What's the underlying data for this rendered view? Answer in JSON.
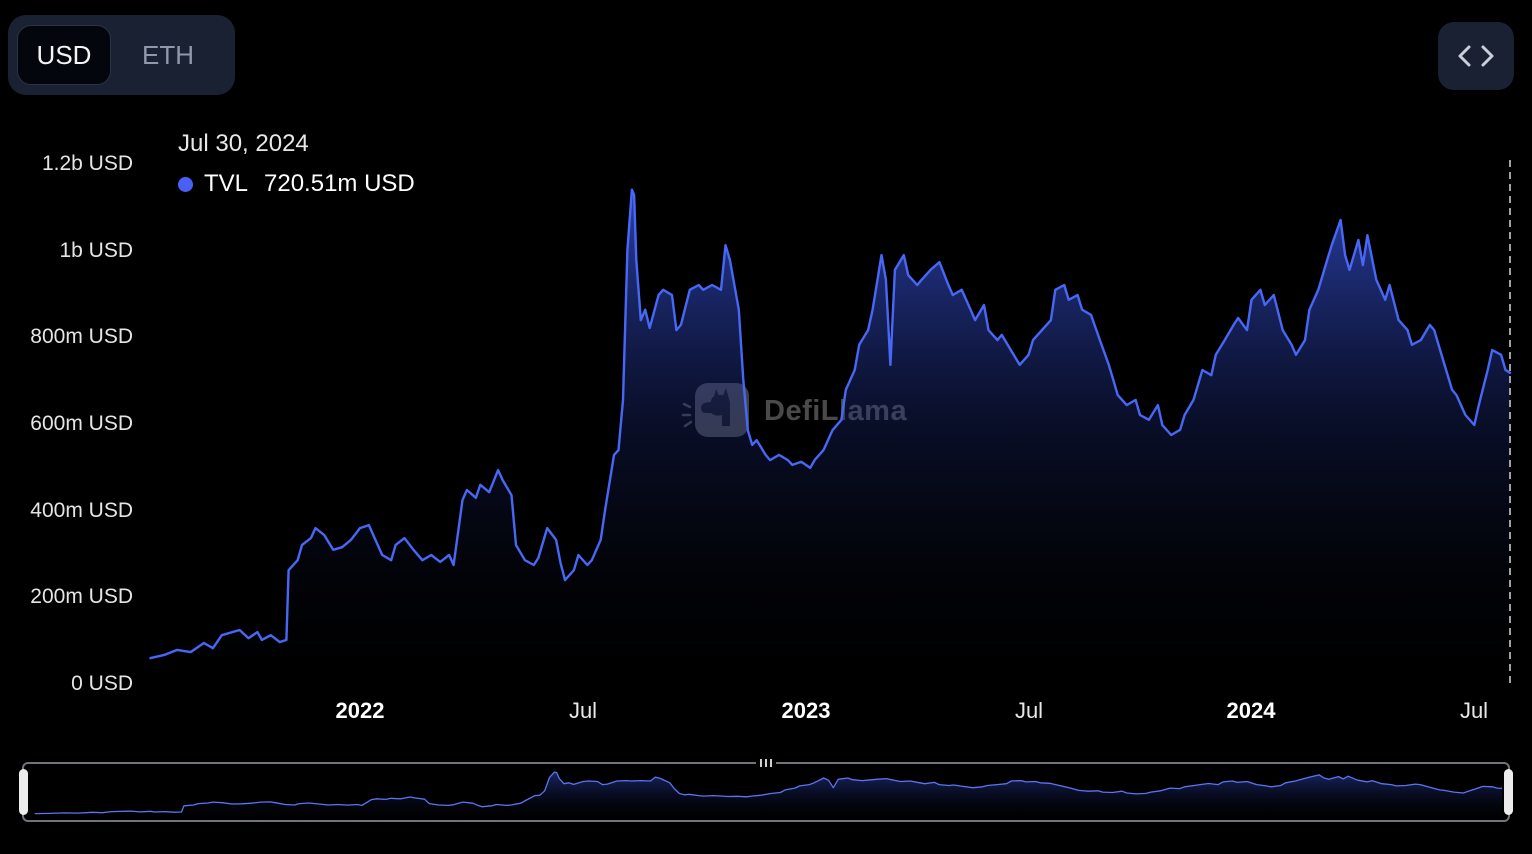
{
  "controls": {
    "currency": {
      "options": [
        "USD",
        "ETH"
      ],
      "selected": "USD"
    },
    "embed_button": {
      "icon": "code-chevrons"
    }
  },
  "tooltip": {
    "date": "Jul 30, 2024",
    "series_label": "TVL",
    "value": "720.51m USD",
    "dot_color": "#4a5ff5"
  },
  "watermark": {
    "text": "DefiLlama"
  },
  "colors": {
    "background": "#000000",
    "panel": "#1a2132",
    "line": "#4768f6",
    "cursor": "#c9c9c9",
    "handle": "#ececec"
  },
  "chart_data": {
    "type": "area",
    "title": "TVL",
    "xlabel": "",
    "ylabel": "",
    "value_unit": "millions USD",
    "x_unit": "decimal_year",
    "grid": false,
    "legend_position": "tooltip-top-left",
    "xlim": [
      2021.52,
      2024.58
    ],
    "ylim": [
      0,
      1200
    ],
    "cursor_x": 2024.58,
    "y_ticks": [
      {
        "label": "1.2b USD",
        "value": 1200
      },
      {
        "label": "1b USD",
        "value": 1000
      },
      {
        "label": "800m USD",
        "value": 800
      },
      {
        "label": "600m USD",
        "value": 600
      },
      {
        "label": "400m USD",
        "value": 400
      },
      {
        "label": "200m USD",
        "value": 200
      },
      {
        "label": "0 USD",
        "value": 0
      }
    ],
    "x_ticks": [
      {
        "label": "2022",
        "x": 2022.0,
        "kind": "year"
      },
      {
        "label": "Jul",
        "x": 2022.5,
        "kind": "month"
      },
      {
        "label": "2023",
        "x": 2023.0,
        "kind": "year"
      },
      {
        "label": "Jul",
        "x": 2023.5,
        "kind": "month"
      },
      {
        "label": "2024",
        "x": 2024.0,
        "kind": "year"
      },
      {
        "label": "Jul",
        "x": 2024.5,
        "kind": "month"
      }
    ],
    "series": [
      {
        "name": "TVL",
        "color": "#4768f6",
        "x": [
          2021.53,
          2021.56,
          2021.59,
          2021.62,
          2021.65,
          2021.67,
          2021.69,
          2021.73,
          2021.75,
          2021.77,
          2021.78,
          2021.8,
          2021.82,
          2021.835,
          2021.84,
          2021.86,
          2021.87,
          2021.89,
          2021.9,
          2021.92,
          2021.94,
          2021.96,
          2021.98,
          2022.0,
          2022.02,
          2022.03,
          2022.05,
          2022.07,
          2022.08,
          2022.1,
          2022.12,
          2022.14,
          2022.16,
          2022.18,
          2022.2,
          2022.21,
          2022.23,
          2022.24,
          2022.26,
          2022.27,
          2022.29,
          2022.31,
          2022.32,
          2022.34,
          2022.35,
          2022.37,
          2022.39,
          2022.4,
          2022.42,
          2022.44,
          2022.45,
          2022.46,
          2022.48,
          2022.49,
          2022.51,
          2022.52,
          2022.54,
          2022.55,
          2022.57,
          2022.58,
          2022.59,
          2022.6,
          2022.61,
          2022.615,
          2022.62,
          2022.63,
          2022.64,
          2022.65,
          2022.67,
          2022.68,
          2022.7,
          2022.71,
          2022.72,
          2022.74,
          2022.76,
          2022.77,
          2022.79,
          2022.81,
          2022.82,
          2022.83,
          2022.85,
          2022.86,
          2022.87,
          2022.88,
          2022.89,
          2022.91,
          2022.92,
          2022.94,
          2022.96,
          2022.97,
          2022.99,
          2023.01,
          2023.02,
          2023.04,
          2023.06,
          2023.08,
          2023.09,
          2023.11,
          2023.12,
          2023.14,
          2023.15,
          2023.17,
          2023.18,
          2023.19,
          2023.2,
          2023.22,
          2023.23,
          2023.25,
          2023.26,
          2023.28,
          2023.3,
          2023.32,
          2023.33,
          2023.35,
          2023.37,
          2023.38,
          2023.4,
          2023.41,
          2023.43,
          2023.44,
          2023.46,
          2023.48,
          2023.5,
          2023.51,
          2023.53,
          2023.55,
          2023.56,
          2023.58,
          2023.59,
          2023.61,
          2023.62,
          2023.64,
          2023.66,
          2023.68,
          2023.69,
          2023.7,
          2023.72,
          2023.74,
          2023.75,
          2023.77,
          2023.79,
          2023.8,
          2023.82,
          2023.84,
          2023.85,
          2023.87,
          2023.89,
          2023.91,
          2023.92,
          2023.94,
          2023.96,
          2023.97,
          2023.99,
          2024.0,
          2024.02,
          2024.03,
          2024.05,
          2024.07,
          2024.09,
          2024.1,
          2024.12,
          2024.13,
          2024.15,
          2024.17,
          2024.18,
          2024.2,
          2024.21,
          2024.22,
          2024.24,
          2024.25,
          2024.26,
          2024.28,
          2024.3,
          2024.31,
          2024.33,
          2024.35,
          2024.36,
          2024.38,
          2024.4,
          2024.41,
          2024.43,
          2024.45,
          2024.46,
          2024.48,
          2024.5,
          2024.51,
          2024.53,
          2024.54,
          2024.56,
          2024.57,
          2024.58
        ],
        "values": [
          62,
          69,
          81,
          76,
          97,
          85,
          115,
          127,
          108,
          122,
          104,
          115,
          99,
          104,
          265,
          288,
          323,
          339,
          362,
          346,
          312,
          318,
          335,
          362,
          369,
          346,
          300,
          288,
          323,
          339,
          312,
          288,
          300,
          284,
          300,
          277,
          427,
          450,
          432,
          462,
          445,
          496,
          473,
          438,
          323,
          288,
          277,
          293,
          362,
          335,
          282,
          242,
          265,
          300,
          277,
          288,
          335,
          404,
          531,
          542,
          658,
          1004,
          1143,
          1131,
          981,
          842,
          866,
          824,
          900,
          912,
          900,
          819,
          831,
          912,
          923,
          912,
          923,
          912,
          1015,
          981,
          866,
          704,
          588,
          554,
          565,
          531,
          519,
          531,
          519,
          508,
          515,
          501,
          519,
          542,
          588,
          612,
          681,
          727,
          785,
          819,
          866,
          992,
          935,
          739,
          958,
          992,
          946,
          923,
          935,
          958,
          976,
          923,
          900,
          912,
          866,
          842,
          877,
          819,
          796,
          808,
          773,
          739,
          762,
          796,
          819,
          842,
          912,
          923,
          889,
          900,
          866,
          854,
          796,
          739,
          704,
          669,
          646,
          658,
          623,
          612,
          646,
          600,
          577,
          589,
          623,
          658,
          727,
          715,
          762,
          796,
          831,
          847,
          819,
          889,
          912,
          877,
          900,
          819,
          785,
          762,
          796,
          866,
          912,
          981,
          1015,
          1073,
          992,
          958,
          1027,
          969,
          1038,
          935,
          889,
          923,
          842,
          819,
          785,
          796,
          831,
          819,
          750,
          681,
          669,
          623,
          600,
          646,
          727,
          773,
          762,
          727,
          720.51
        ]
      }
    ]
  }
}
